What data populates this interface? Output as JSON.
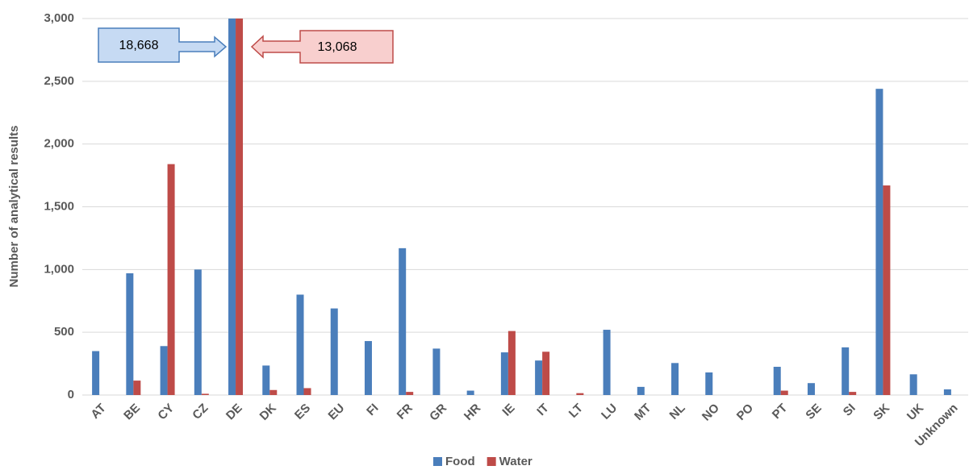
{
  "chart_data": {
    "type": "bar",
    "y_label": "Number of analytical results",
    "categories": [
      "AT",
      "BE",
      "CY",
      "CZ",
      "DE",
      "DK",
      "ES",
      "EU",
      "FI",
      "FR",
      "GR",
      "HR",
      "IE",
      "IT",
      "LT",
      "LU",
      "MT",
      "NL",
      "NO",
      "PO",
      "PT",
      "SE",
      "SI",
      "SK",
      "UK",
      "Unknown"
    ],
    "series": [
      {
        "name": "Food",
        "color": "#4a7ebb",
        "values": [
          350,
          970,
          390,
          1000,
          18668,
          235,
          800,
          690,
          430,
          1170,
          370,
          35,
          340,
          275,
          0,
          520,
          65,
          255,
          180,
          0,
          225,
          95,
          380,
          2440,
          165,
          45
        ],
        "value_labels": [
          null,
          null,
          null,
          null,
          "18,668",
          null,
          null,
          null,
          null,
          null,
          null,
          null,
          null,
          null,
          null,
          null,
          null,
          null,
          null,
          null,
          null,
          null,
          null,
          null,
          null,
          null
        ]
      },
      {
        "name": "Water",
        "color": "#be4b48",
        "values": [
          0,
          115,
          1840,
          10,
          13068,
          40,
          55,
          0,
          0,
          25,
          0,
          0,
          510,
          345,
          15,
          0,
          0,
          0,
          0,
          0,
          35,
          0,
          25,
          1670,
          0,
          0
        ],
        "value_labels": [
          null,
          null,
          null,
          null,
          "13,068",
          null,
          null,
          null,
          null,
          null,
          null,
          null,
          null,
          null,
          null,
          null,
          null,
          null,
          null,
          null,
          null,
          null,
          null,
          null,
          null,
          null
        ]
      }
    ],
    "ylim": [
      0,
      3000
    ],
    "yticks": [
      0,
      {
        "value": 500,
        "label": "500"
      },
      {
        "value": 1000,
        "label": "1,000"
      },
      {
        "value": 1500,
        "label": "1,500"
      },
      {
        "value": 2000,
        "label": "2,000"
      },
      {
        "value": 2500,
        "label": "2,500"
      },
      {
        "value": 3000,
        "label": "3,000"
      }
    ],
    "grid": true,
    "legend": "bottom"
  }
}
